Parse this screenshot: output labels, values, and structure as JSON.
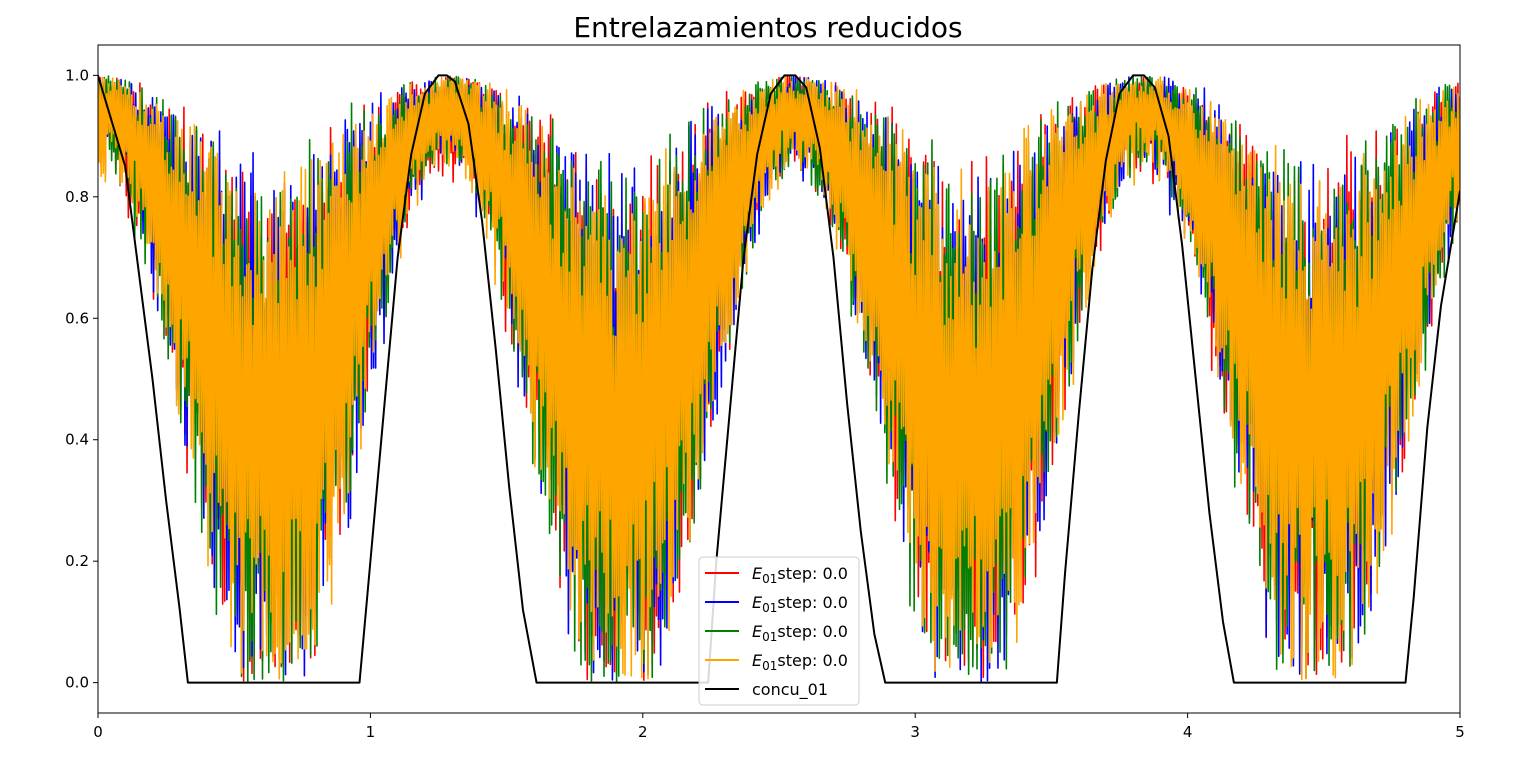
{
  "chart_data": {
    "type": "line",
    "title": "Entrelazamientos reducidos",
    "xlabel": "",
    "ylabel": "",
    "xlim": [
      0,
      5
    ],
    "ylim": [
      -0.05,
      1.05
    ],
    "xticks": [
      0,
      1,
      2,
      3,
      4,
      5
    ],
    "xtick_labels": [
      "0",
      "1",
      "2",
      "3",
      "4",
      "5"
    ],
    "yticks": [
      0.0,
      0.2,
      0.4,
      0.6,
      0.8,
      1.0
    ],
    "ytick_labels": [
      "0.0",
      "0.2",
      "0.4",
      "0.6",
      "0.8",
      "1.0"
    ],
    "legend_position": "bottom-center",
    "period": 1.28,
    "series": [
      {
        "name": "E01 step: 0.0",
        "label_base": "E",
        "label_sub": "01",
        "label_rest": "step: 0.0",
        "color": "#ff0000",
        "style": "noisy",
        "seed": 11
      },
      {
        "name": "E01 step: 0.0",
        "label_base": "E",
        "label_sub": "01",
        "label_rest": "step: 0.0",
        "color": "#0000ff",
        "style": "noisy",
        "seed": 23
      },
      {
        "name": "E01 step: 0.0",
        "label_base": "E",
        "label_sub": "01",
        "label_rest": "step: 0.0",
        "color": "#008000",
        "style": "noisy",
        "seed": 37
      },
      {
        "name": "E01 step: 0.0",
        "label_base": "E",
        "label_sub": "01",
        "label_rest": "step: 0.0",
        "color": "#ffa500",
        "style": "noisy",
        "seed": 53
      },
      {
        "name": "concu_01",
        "color": "#000000",
        "style": "smooth",
        "x": [
          0,
          0.1,
          0.2,
          0.25,
          0.3,
          0.33,
          0.96,
          1.0,
          1.05,
          1.1,
          1.15,
          1.2,
          1.25,
          1.28,
          1.31,
          1.36,
          1.41,
          1.46,
          1.51,
          1.56,
          1.61,
          2.24,
          2.27,
          2.32,
          2.37,
          2.42,
          2.47,
          2.52,
          2.56,
          2.6,
          2.65,
          2.7,
          2.75,
          2.8,
          2.85,
          2.89,
          3.52,
          3.55,
          3.6,
          3.65,
          3.7,
          3.75,
          3.8,
          3.84,
          3.88,
          3.93,
          3.98,
          4.03,
          4.08,
          4.13,
          4.17,
          4.8,
          4.83,
          4.88,
          4.93,
          5.0
        ],
        "y": [
          1.0,
          0.85,
          0.5,
          0.3,
          0.12,
          0.0,
          0.0,
          0.2,
          0.45,
          0.7,
          0.87,
          0.97,
          1.0,
          1.0,
          0.99,
          0.92,
          0.76,
          0.55,
          0.32,
          0.12,
          0.0,
          0.0,
          0.2,
          0.45,
          0.7,
          0.87,
          0.97,
          1.0,
          1.0,
          0.98,
          0.88,
          0.7,
          0.46,
          0.25,
          0.08,
          0.0,
          0.0,
          0.18,
          0.44,
          0.68,
          0.86,
          0.97,
          1.0,
          1.0,
          0.98,
          0.9,
          0.72,
          0.5,
          0.28,
          0.1,
          0.0,
          0.0,
          0.14,
          0.42,
          0.62,
          0.81
        ]
      }
    ]
  }
}
